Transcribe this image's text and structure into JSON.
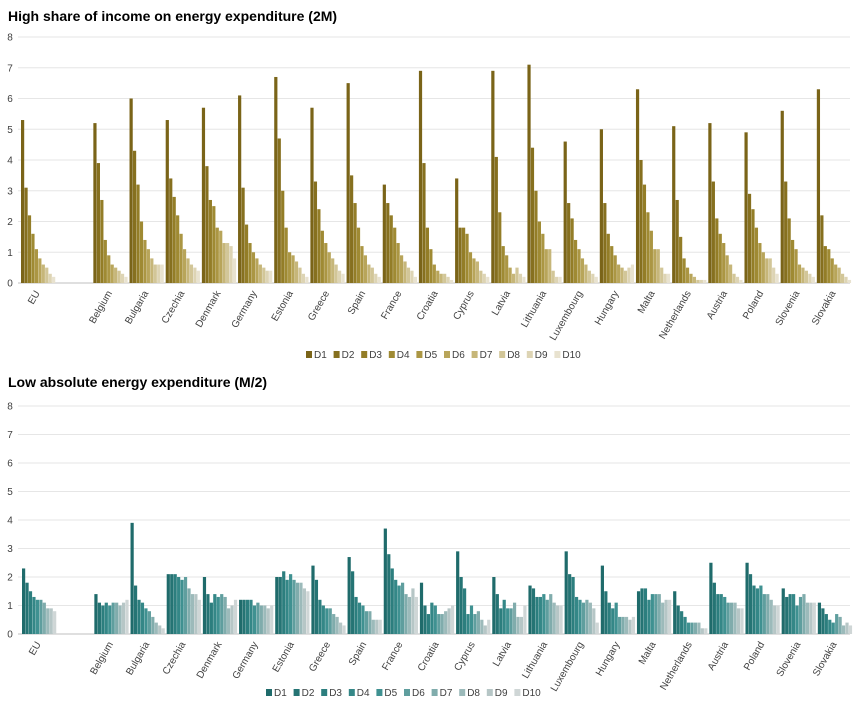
{
  "chart_data": [
    {
      "type": "bar",
      "title": "High share of income on energy expenditure (2M)",
      "ylim": [
        0,
        8
      ],
      "yticks": [
        "0",
        "1",
        "2",
        "3",
        "4",
        "5",
        "6",
        "7",
        "8"
      ],
      "grid": true,
      "legend": "bottom",
      "categories": [
        "EU",
        "",
        "Belgium",
        "Bulgaria",
        "Czechia",
        "Denmark",
        "Germany",
        "Estonia",
        "Greece",
        "Spain",
        "France",
        "Croatia",
        "Cyprus",
        "Latvia",
        "Lithuania",
        "Luxembourg",
        "Hungary",
        "Malta",
        "Netherlands",
        "Austria",
        "Poland",
        "Slovenia",
        "Slovakia"
      ],
      "series_names": [
        "D1",
        "D2",
        "D3",
        "D4",
        "D5",
        "D6",
        "D7",
        "D8",
        "D9",
        "D10"
      ],
      "colors": [
        "#7a6418",
        "#86701f",
        "#937d27",
        "#9f8a33",
        "#ab9643",
        "#b8a55a",
        "#c6b679",
        "#d2c698",
        "#ddd4b4",
        "#e8e2cf"
      ],
      "values": [
        [
          5.3,
          3.1,
          2.2,
          1.6,
          1.1,
          0.8,
          0.6,
          0.5,
          0.3,
          0.2
        ],
        [
          0,
          0,
          0,
          0,
          0,
          0,
          0,
          0,
          0,
          0
        ],
        [
          5.2,
          3.9,
          2.7,
          1.4,
          0.9,
          0.6,
          0.5,
          0.4,
          0.3,
          0.2
        ],
        [
          6.0,
          4.3,
          3.2,
          2.0,
          1.4,
          1.1,
          0.8,
          0.6,
          0.6,
          0.6
        ],
        [
          5.3,
          3.4,
          2.8,
          2.2,
          1.6,
          1.1,
          0.8,
          0.6,
          0.5,
          0.4
        ],
        [
          5.7,
          3.8,
          2.7,
          2.5,
          1.8,
          1.7,
          1.3,
          1.3,
          1.2,
          0.8
        ],
        [
          6.1,
          3.1,
          1.9,
          1.3,
          1.0,
          0.8,
          0.6,
          0.5,
          0.4,
          0.4
        ],
        [
          6.7,
          4.7,
          3.0,
          1.8,
          1.0,
          0.9,
          0.7,
          0.5,
          0.3,
          0.2
        ],
        [
          5.7,
          3.3,
          2.4,
          1.7,
          1.3,
          1.0,
          0.8,
          0.6,
          0.4,
          0.3
        ],
        [
          6.5,
          3.5,
          2.6,
          1.8,
          1.2,
          0.9,
          0.6,
          0.5,
          0.3,
          0.2
        ],
        [
          3.2,
          2.6,
          2.2,
          1.8,
          1.3,
          0.9,
          0.7,
          0.5,
          0.4,
          0.2
        ],
        [
          6.9,
          3.9,
          1.8,
          1.1,
          0.6,
          0.4,
          0.3,
          0.3,
          0.2,
          0.1
        ],
        [
          3.4,
          1.8,
          1.8,
          1.6,
          1.0,
          0.8,
          0.7,
          0.4,
          0.3,
          0.2
        ],
        [
          6.9,
          4.1,
          2.3,
          1.2,
          0.9,
          0.5,
          0.3,
          0.5,
          0.3,
          0.2
        ],
        [
          7.1,
          4.4,
          3.0,
          2.0,
          1.6,
          1.1,
          1.1,
          0.4,
          0.2,
          0.2
        ],
        [
          4.6,
          2.6,
          2.1,
          1.4,
          1.1,
          0.8,
          0.6,
          0.4,
          0.3,
          0.2
        ],
        [
          5.0,
          2.6,
          1.6,
          1.2,
          0.9,
          0.6,
          0.5,
          0.4,
          0.5,
          0.6
        ],
        [
          6.3,
          4.0,
          3.2,
          2.3,
          1.7,
          1.1,
          1.1,
          0.5,
          0.3,
          0.3
        ],
        [
          5.1,
          2.7,
          1.5,
          0.8,
          0.5,
          0.3,
          0.2,
          0.1,
          0.1,
          0.1
        ],
        [
          5.2,
          3.3,
          2.1,
          1.6,
          1.3,
          0.9,
          0.6,
          0.3,
          0.2,
          0.1
        ],
        [
          4.9,
          2.9,
          2.4,
          1.8,
          1.3,
          1.0,
          0.8,
          0.8,
          0.5,
          0.3
        ],
        [
          5.6,
          3.3,
          2.1,
          1.4,
          1.1,
          0.6,
          0.5,
          0.4,
          0.3,
          0.2
        ],
        [
          6.3,
          2.2,
          1.2,
          1.1,
          0.8,
          0.6,
          0.5,
          0.3,
          0.2,
          0.1
        ]
      ]
    },
    {
      "type": "bar",
      "title": "Low absolute energy expenditure (M/2)",
      "ylim": [
        0,
        8
      ],
      "yticks": [
        "0",
        "1",
        "2",
        "3",
        "4",
        "5",
        "6",
        "7",
        "8"
      ],
      "grid": true,
      "legend": "bottom",
      "categories": [
        "EU",
        "",
        "Belgium",
        "Bulgaria",
        "Czechia",
        "Denmark",
        "Germany",
        "Estonia",
        "Greece",
        "Spain",
        "France",
        "Croatia",
        "Cyprus",
        "Latvia",
        "Lithuania",
        "Luxembourg",
        "Hungary",
        "Malta",
        "Netherlands",
        "Austria",
        "Poland",
        "Slovenia",
        "Slovakia"
      ],
      "series_names": [
        "D1",
        "D2",
        "D3",
        "D4",
        "D5",
        "D6",
        "D7",
        "D8",
        "D9",
        "D10"
      ],
      "colors": [
        "#1f6b6b",
        "#257474",
        "#2c7e7e",
        "#348787",
        "#3f9191",
        "#5f9e9e",
        "#80acac",
        "#9cbaba",
        "#b6c6c6",
        "#cfd6d6"
      ],
      "values": [
        [
          2.3,
          1.8,
          1.5,
          1.3,
          1.2,
          1.2,
          1.1,
          0.9,
          0.9,
          0.8
        ],
        [
          0,
          0,
          0,
          0,
          0,
          0,
          0,
          0,
          0,
          0
        ],
        [
          1.4,
          1.1,
          1.0,
          1.1,
          1.0,
          1.1,
          1.1,
          1.0,
          1.1,
          1.2
        ],
        [
          3.9,
          1.7,
          1.2,
          1.1,
          0.9,
          0.8,
          0.6,
          0.4,
          0.3,
          0.2
        ],
        [
          2.1,
          2.1,
          2.1,
          2.0,
          1.9,
          2.0,
          1.6,
          1.4,
          1.4,
          1.2
        ],
        [
          2.0,
          1.4,
          1.1,
          1.4,
          1.3,
          1.4,
          1.3,
          0.9,
          1.0,
          1.2
        ],
        [
          1.2,
          1.2,
          1.2,
          1.2,
          1.0,
          1.1,
          1.0,
          1.0,
          0.9,
          1.0
        ],
        [
          2.0,
          2.0,
          2.2,
          1.9,
          2.1,
          1.9,
          1.8,
          1.8,
          1.6,
          1.5
        ],
        [
          2.4,
          1.9,
          1.2,
          1.0,
          0.9,
          0.9,
          0.7,
          0.6,
          0.4,
          0.3
        ],
        [
          2.7,
          2.2,
          1.3,
          1.1,
          1.0,
          0.8,
          0.8,
          0.5,
          0.5,
          0.5
        ],
        [
          3.7,
          2.8,
          2.3,
          1.9,
          1.7,
          1.8,
          1.4,
          1.3,
          1.6,
          1.3
        ],
        [
          1.8,
          1.0,
          0.7,
          1.1,
          1.0,
          0.7,
          0.7,
          0.8,
          0.9,
          1.0
        ],
        [
          2.9,
          2.0,
          1.6,
          0.7,
          1.0,
          0.7,
          0.8,
          0.5,
          0.3,
          0.5
        ],
        [
          2.0,
          1.4,
          0.9,
          1.2,
          0.9,
          0.9,
          1.1,
          0.6,
          0.6,
          1.0
        ],
        [
          1.7,
          1.6,
          1.3,
          1.3,
          1.4,
          1.2,
          1.4,
          1.1,
          1.0,
          1.0
        ],
        [
          2.9,
          2.1,
          2.0,
          1.3,
          1.2,
          1.1,
          1.2,
          1.1,
          0.9,
          0.4
        ],
        [
          2.4,
          1.5,
          1.1,
          0.9,
          1.1,
          0.6,
          0.6,
          0.6,
          0.5,
          0.6
        ],
        [
          1.5,
          1.6,
          1.6,
          1.2,
          1.4,
          1.4,
          1.4,
          1.1,
          1.2,
          1.2
        ],
        [
          1.5,
          1.0,
          0.8,
          0.6,
          0.4,
          0.4,
          0.4,
          0.4,
          0.2,
          0.2
        ],
        [
          2.5,
          1.8,
          1.4,
          1.4,
          1.3,
          1.1,
          1.1,
          1.1,
          0.9,
          0.9
        ],
        [
          2.5,
          2.1,
          1.7,
          1.6,
          1.7,
          1.4,
          1.4,
          1.2,
          1.0,
          1.0
        ],
        [
          1.6,
          1.3,
          1.4,
          1.4,
          1.0,
          1.3,
          1.4,
          1.1,
          1.1,
          1.1
        ],
        [
          1.1,
          0.9,
          0.7,
          0.5,
          0.4,
          0.7,
          0.6,
          0.3,
          0.4,
          0.3
        ]
      ]
    }
  ]
}
